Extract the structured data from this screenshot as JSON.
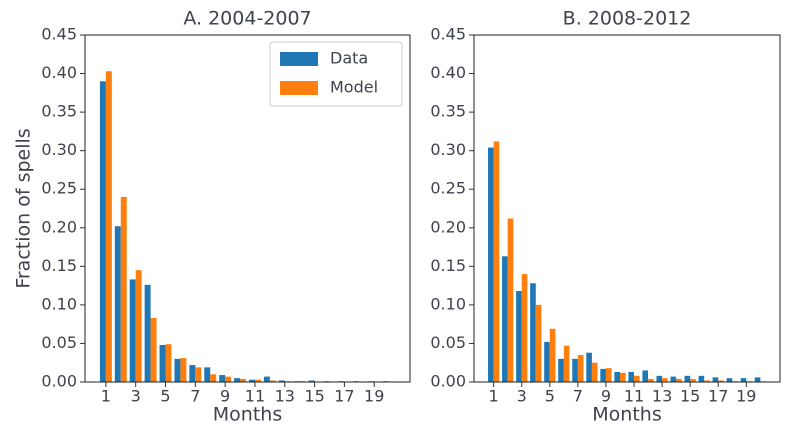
{
  "chart_data": [
    {
      "type": "bar",
      "title": "A. 2004-2007",
      "xlabel": "Months",
      "ylabel": "Fraction of spells",
      "x": [
        1,
        2,
        3,
        4,
        5,
        6,
        7,
        8,
        9,
        10,
        11,
        12,
        13,
        14,
        15,
        16,
        17,
        18,
        19,
        20
      ],
      "series": [
        {
          "name": "Data",
          "color": "#1f77b4",
          "values": [
            0.39,
            0.202,
            0.133,
            0.126,
            0.048,
            0.03,
            0.022,
            0.019,
            0.009,
            0.005,
            0.003,
            0.007,
            0.002,
            0.001,
            0.002,
            0.001,
            0.001,
            0.001,
            0.001,
            0.001
          ]
        },
        {
          "name": "Model",
          "color": "#ff7f0e",
          "values": [
            0.403,
            0.24,
            0.145,
            0.083,
            0.049,
            0.031,
            0.019,
            0.01,
            0.007,
            0.004,
            0.003,
            0.002,
            0.001,
            0.001,
            0.0,
            0.0,
            0.0,
            0.0,
            0.0,
            0.0
          ]
        }
      ],
      "xlim": [
        -0.4,
        21.4
      ],
      "xticks": [
        1,
        3,
        5,
        7,
        9,
        11,
        13,
        15,
        17,
        19
      ],
      "ylim": [
        0,
        0.45
      ],
      "yticks": [
        {
          "value": 0,
          "label": "0.00"
        },
        0.05,
        {
          "value": 0.1,
          "label": "0.10"
        },
        0.15,
        {
          "value": 0.2,
          "label": "0.20"
        },
        0.25,
        {
          "value": 0.3,
          "label": "0.30"
        },
        0.35,
        {
          "value": 0.4,
          "label": "0.40"
        },
        0.45
      ],
      "legend": "upper right"
    },
    {
      "type": "bar",
      "title": "B. 2008-2012",
      "xlabel": "Months",
      "x": [
        1,
        2,
        3,
        4,
        5,
        6,
        7,
        8,
        9,
        10,
        11,
        12,
        13,
        14,
        15,
        16,
        17,
        18,
        19,
        20
      ],
      "series": [
        {
          "name": "Data",
          "color": "#1f77b4",
          "values": [
            0.304,
            0.163,
            0.118,
            0.128,
            0.052,
            0.03,
            0.03,
            0.038,
            0.017,
            0.013,
            0.013,
            0.015,
            0.008,
            0.007,
            0.008,
            0.008,
            0.006,
            0.005,
            0.005,
            0.006
          ]
        },
        {
          "name": "Model",
          "color": "#ff7f0e",
          "values": [
            0.312,
            0.212,
            0.14,
            0.1,
            0.069,
            0.047,
            0.035,
            0.025,
            0.018,
            0.012,
            0.008,
            0.004,
            0.005,
            0.004,
            0.004,
            0.002,
            0.002,
            0.001,
            0.001,
            0.001
          ]
        }
      ],
      "xlim": [
        -0.4,
        21.4
      ],
      "xticks": [
        1,
        3,
        5,
        7,
        9,
        11,
        13,
        15,
        17,
        19
      ],
      "ylim": [
        0,
        0.45
      ],
      "yticks": [
        {
          "value": 0,
          "label": "0.00"
        },
        0.05,
        {
          "value": 0.1,
          "label": "0.10"
        },
        0.15,
        {
          "value": 0.2,
          "label": "0.20"
        },
        0.25,
        {
          "value": 0.3,
          "label": "0.30"
        },
        0.35,
        {
          "value": 0.4,
          "label": "0.40"
        },
        0.45
      ]
    }
  ]
}
